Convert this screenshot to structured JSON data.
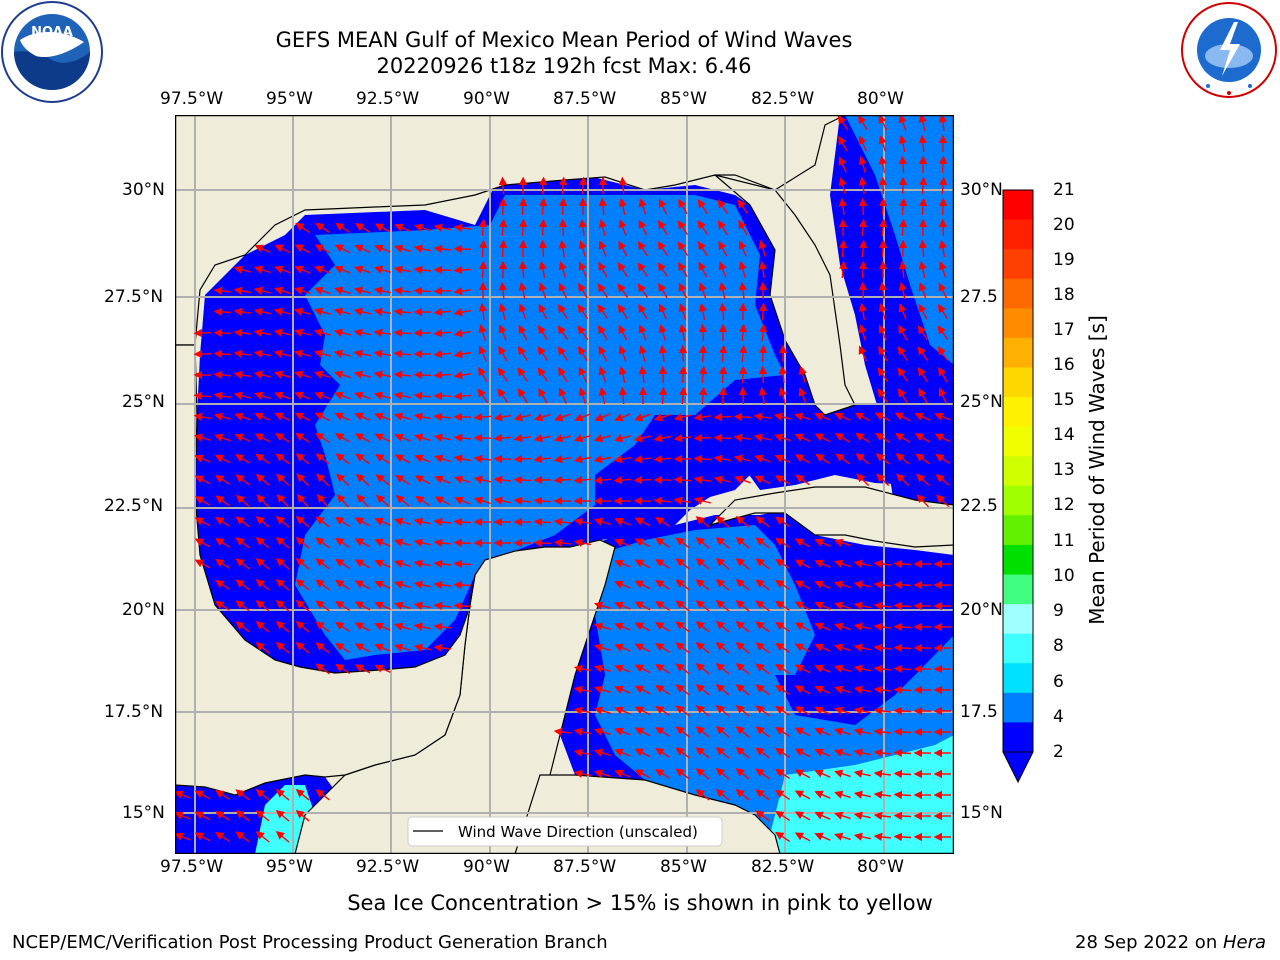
{
  "header": {
    "title_line1": "GEFS MEAN Gulf of Mexico Mean Period of Wind Waves",
    "title_line2": "20220926 t18z 192h fcst   Max: 6.46"
  },
  "logos": {
    "left": {
      "name": "NOAA",
      "ring_text": "NATIONAL OCEANIC AND ATMOSPHERIC ADMINISTRATION · U.S. DEPARTMENT OF COMMERCE"
    },
    "right": {
      "name": "NATIONAL WEATHER SERVICE"
    }
  },
  "map": {
    "lon_labels": [
      "97.5°W",
      "95°W",
      "92.5°W",
      "90°W",
      "87.5°W",
      "85°W",
      "82.5°W",
      "80°W"
    ],
    "lat_labels_left": [
      "30°N",
      "27.5°N",
      "25°N",
      "22.5°N",
      "20°N",
      "17.5°N",
      "15°N"
    ],
    "lat_labels_right": [
      "30°N",
      "27.5",
      "25°N",
      "22.5",
      "20°N",
      "17.5",
      "15°N"
    ],
    "legend_label": "Wind Wave Direction (unscaled)",
    "colors": {
      "land": "#efecda",
      "deep": "#0000ff",
      "mid": "#0080ff",
      "light": "#40ffff",
      "arrow": "#ff0000",
      "grid": "#b0b0b0"
    }
  },
  "colorbar": {
    "label": "Mean Period of Wind Waves [s]",
    "ticks": [
      "21",
      "20",
      "19",
      "18",
      "17",
      "16",
      "15",
      "14",
      "13",
      "12",
      "11",
      "10",
      "9",
      "8",
      "6",
      "4",
      "2"
    ],
    "colors": [
      "#ff0000",
      "#ff2000",
      "#ff4000",
      "#ff6a00",
      "#ff8c00",
      "#ffb000",
      "#ffd700",
      "#fff200",
      "#f0ff00",
      "#d0ff00",
      "#a0ff00",
      "#60f000",
      "#00e000",
      "#40ff80",
      "#a0ffff",
      "#40ffff",
      "#00e0ff",
      "#0080ff",
      "#0000ff"
    ]
  },
  "subtitle": "Sea Ice Concentration > 15% is shown in pink to yellow",
  "footer": {
    "left": "NCEP/EMC/Verification Post Processing Product Generation Branch",
    "date": "28 Sep 2022 on ",
    "machine": "Hera"
  }
}
